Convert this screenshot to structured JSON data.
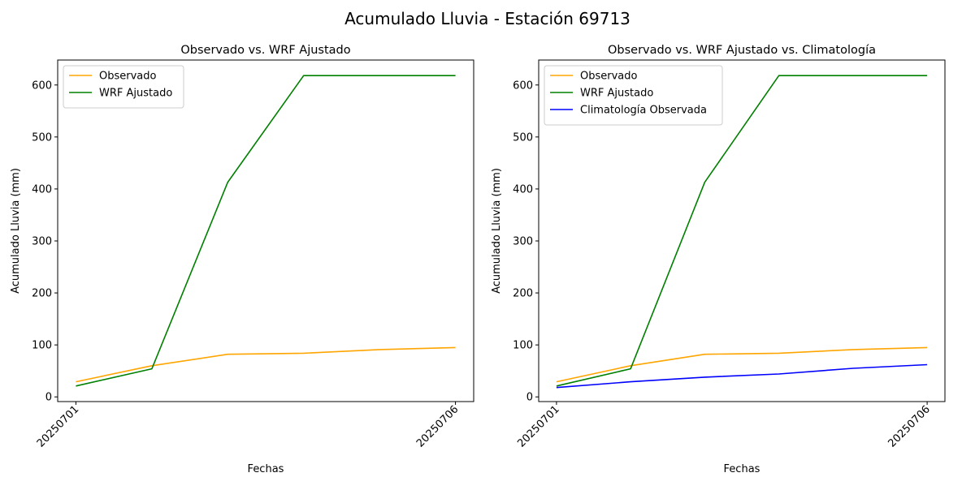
{
  "suptitle": "Acumulado Lluvia - Estación 69713",
  "colors": {
    "observado": "#ffa500",
    "wrf": "#008000",
    "clim": "#0000ff"
  },
  "chart_data": [
    {
      "type": "line",
      "title": "Observado vs. WRF Ajustado",
      "xlabel": "Fechas",
      "ylabel": "Acumulado Lluvia (mm)",
      "x": [
        1,
        2,
        3,
        4,
        5,
        6
      ],
      "xticks": [
        1,
        6
      ],
      "xticklabels": [
        "20250701",
        "20250706"
      ],
      "xlim": [
        0.76,
        6.24
      ],
      "ylim": [
        -9,
        648
      ],
      "yticks": [
        0,
        100,
        200,
        300,
        400,
        500,
        600
      ],
      "legend_position": "top-left",
      "series": [
        {
          "name": "Observado",
          "color": "#ffa500",
          "values": [
            29,
            60,
            82,
            84,
            91,
            95
          ]
        },
        {
          "name": "WRF Ajustado",
          "color": "#008000",
          "values": [
            21,
            54,
            413,
            618,
            618,
            618
          ]
        }
      ]
    },
    {
      "type": "line",
      "title": "Observado vs. WRF Ajustado vs. Climatología",
      "xlabel": "Fechas",
      "ylabel": "Acumulado Lluvia (mm)",
      "x": [
        1,
        2,
        3,
        4,
        5,
        6
      ],
      "xticks": [
        1,
        6
      ],
      "xticklabels": [
        "20250701",
        "20250706"
      ],
      "xlim": [
        0.76,
        6.24
      ],
      "ylim": [
        -9,
        648
      ],
      "yticks": [
        0,
        100,
        200,
        300,
        400,
        500,
        600
      ],
      "legend_position": "top-left",
      "series": [
        {
          "name": "Observado",
          "color": "#ffa500",
          "values": [
            29,
            60,
            82,
            84,
            91,
            95
          ]
        },
        {
          "name": "WRF Ajustado",
          "color": "#008000",
          "values": [
            21,
            54,
            413,
            618,
            618,
            618
          ]
        },
        {
          "name": "Climatología Observada",
          "color": "#0000ff",
          "values": [
            18,
            29,
            38,
            44,
            55,
            62
          ]
        }
      ]
    }
  ]
}
